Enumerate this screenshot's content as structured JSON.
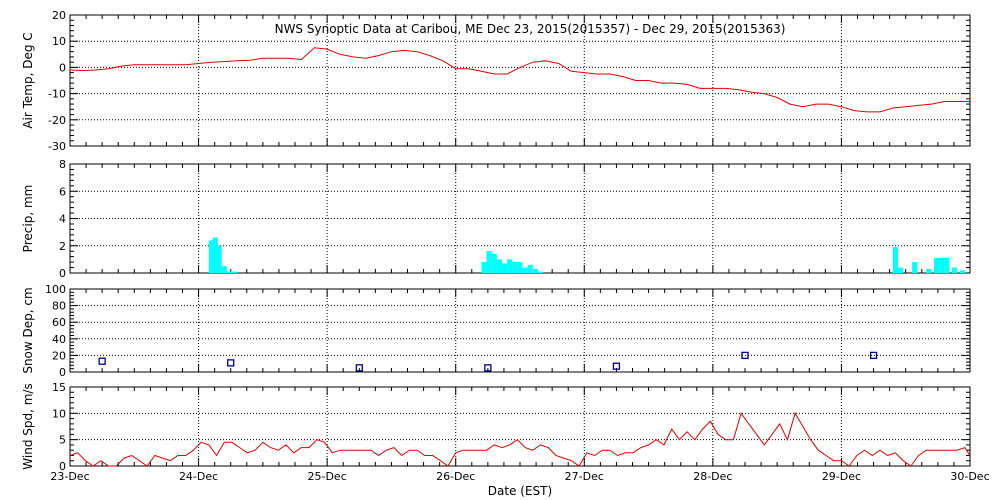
{
  "title": "NWS Synoptic Data at Caribou, ME    Dec 23, 2015(2015357) - Dec 29, 2015(2015363)",
  "xlabel": "Date (EST)",
  "colors": {
    "temp": "#e00000",
    "precip": "#00ffff",
    "snow": "#000080",
    "wind": "#e00000"
  },
  "chart_data": [
    {
      "type": "line",
      "ylabel": "Air Temp, Deg C",
      "xlim": [
        "Dec 23 00:00",
        "Dec 30 00:00"
      ],
      "ylim": [
        -30,
        20
      ],
      "yticks": [
        "20",
        "10",
        "0",
        "-10",
        "-20",
        "-30"
      ],
      "x_days": [
        0,
        0.1,
        0.2,
        0.3,
        0.4,
        0.5,
        0.6,
        0.7,
        0.8,
        0.9,
        1.0,
        1.1,
        1.2,
        1.3,
        1.4,
        1.5,
        1.6,
        1.7,
        1.8,
        1.9,
        2.0,
        2.1,
        2.2,
        2.3,
        2.4,
        2.5,
        2.6,
        2.7,
        2.8,
        2.9,
        3.0,
        3.1,
        3.2,
        3.3,
        3.4,
        3.5,
        3.6,
        3.7,
        3.8,
        3.9,
        4.0,
        4.1,
        4.2,
        4.3,
        4.4,
        4.5,
        4.6,
        4.7,
        4.8,
        4.9,
        5.0,
        5.1,
        5.2,
        5.3,
        5.4,
        5.5,
        5.6,
        5.7,
        5.8,
        5.9,
        6.0,
        6.1,
        6.2,
        6.3,
        6.4,
        6.5,
        6.6,
        6.7,
        6.8,
        6.9,
        7.0
      ],
      "series": [
        {
          "values": [
            -1,
            -1.2,
            -1,
            -0.5,
            0.5,
            1,
            1,
            1,
            1,
            1,
            1.5,
            2,
            2.2,
            2.5,
            2.7,
            3.5,
            3.5,
            3.5,
            3,
            7.5,
            7,
            5,
            4,
            3.5,
            4.5,
            6,
            6.5,
            6,
            4.5,
            2.5,
            -0.5,
            -0.5,
            -1.5,
            -2.5,
            -2.5,
            0,
            2,
            2.5,
            1.5,
            -1.5,
            -2,
            -2.5,
            -2.5,
            -3.5,
            -5,
            -5,
            -6,
            -6,
            -6.5,
            -8,
            -8,
            -8,
            -8.5,
            -9.5,
            -10,
            -11.5,
            -14,
            -15,
            -14,
            -14,
            -15,
            -16.5,
            -17,
            -17,
            -15.5,
            -15,
            -14.5,
            -14,
            -13,
            -13,
            -13
          ]
        }
      ]
    },
    {
      "type": "bar",
      "ylabel": "Precip, mm",
      "xlim": [
        "Dec 23 00:00",
        "Dec 30 00:00"
      ],
      "ylim": [
        0,
        8
      ],
      "yticks": [
        "8",
        "6",
        "4",
        "2",
        "0"
      ],
      "bins": [
        {
          "x": 1.08,
          "v": 2.4
        },
        {
          "x": 1.11,
          "v": 2.6
        },
        {
          "x": 1.14,
          "v": 2.0
        },
        {
          "x": 1.18,
          "v": 0.5
        },
        {
          "x": 1.22,
          "v": 0.1
        },
        {
          "x": 1.26,
          "v": 0.1
        },
        {
          "x": 3.2,
          "v": 0.8
        },
        {
          "x": 3.24,
          "v": 1.6
        },
        {
          "x": 3.28,
          "v": 1.4
        },
        {
          "x": 3.32,
          "v": 1.0
        },
        {
          "x": 3.36,
          "v": 0.7
        },
        {
          "x": 3.4,
          "v": 1.0
        },
        {
          "x": 3.44,
          "v": 0.8
        },
        {
          "x": 3.48,
          "v": 0.8
        },
        {
          "x": 3.52,
          "v": 0.4
        },
        {
          "x": 3.56,
          "v": 0.6
        },
        {
          "x": 3.6,
          "v": 0.3
        },
        {
          "x": 3.64,
          "v": 0.1
        },
        {
          "x": 6.4,
          "v": 1.9
        },
        {
          "x": 6.44,
          "v": 0.4
        },
        {
          "x": 6.55,
          "v": 0.8
        },
        {
          "x": 6.66,
          "v": 0.3
        },
        {
          "x": 6.72,
          "v": 1.1
        },
        {
          "x": 6.76,
          "v": 1.1
        },
        {
          "x": 6.8,
          "v": 1.1
        },
        {
          "x": 6.86,
          "v": 0.4
        },
        {
          "x": 6.92,
          "v": 0.2
        }
      ]
    },
    {
      "type": "scatter",
      "ylabel": "Snow Dep, cm",
      "xlim": [
        "Dec 23 00:00",
        "Dec 30 00:00"
      ],
      "ylim": [
        0,
        100
      ],
      "yticks": [
        "100",
        "80",
        "60",
        "40",
        "20",
        "0"
      ],
      "points": [
        {
          "x": 0.25,
          "y": 13
        },
        {
          "x": 1.25,
          "y": 11
        },
        {
          "x": 2.25,
          "y": 5
        },
        {
          "x": 3.25,
          "y": 5
        },
        {
          "x": 4.25,
          "y": 7
        },
        {
          "x": 5.25,
          "y": 20
        },
        {
          "x": 6.25,
          "y": 20
        }
      ]
    },
    {
      "type": "line",
      "ylabel": "Wind Spd, m/s",
      "xlim": [
        "Dec 23 00:00",
        "Dec 30 00:00"
      ],
      "ylim": [
        0,
        15
      ],
      "yticks": [
        "15",
        "10",
        "5",
        "0"
      ],
      "xticks": [
        "23-Dec",
        "24-Dec",
        "25-Dec",
        "26-Dec",
        "27-Dec",
        "28-Dec",
        "29-Dec",
        "30-Dec"
      ],
      "x_days": [
        0,
        0.06,
        0.12,
        0.18,
        0.24,
        0.3,
        0.36,
        0.42,
        0.48,
        0.54,
        0.6,
        0.66,
        0.72,
        0.78,
        0.84,
        0.9,
        0.96,
        1.02,
        1.08,
        1.14,
        1.2,
        1.26,
        1.32,
        1.38,
        1.44,
        1.5,
        1.56,
        1.62,
        1.68,
        1.74,
        1.8,
        1.86,
        1.92,
        1.98,
        2.04,
        2.1,
        2.16,
        2.22,
        2.28,
        2.34,
        2.4,
        2.46,
        2.52,
        2.58,
        2.64,
        2.7,
        2.76,
        2.82,
        2.88,
        2.94,
        3.0,
        3.06,
        3.12,
        3.18,
        3.24,
        3.3,
        3.36,
        3.42,
        3.48,
        3.54,
        3.6,
        3.66,
        3.72,
        3.78,
        3.84,
        3.9,
        3.96,
        4.02,
        4.08,
        4.14,
        4.2,
        4.26,
        4.32,
        4.38,
        4.44,
        4.5,
        4.56,
        4.62,
        4.68,
        4.74,
        4.8,
        4.86,
        4.92,
        4.98,
        5.04,
        5.1,
        5.16,
        5.22,
        5.28,
        5.34,
        5.4,
        5.46,
        5.52,
        5.58,
        5.64,
        5.7,
        5.76,
        5.82,
        5.88,
        5.94,
        6.0,
        6.06,
        6.12,
        6.18,
        6.24,
        6.3,
        6.36,
        6.42,
        6.48,
        6.54,
        6.6,
        6.66,
        6.72,
        6.78,
        6.84,
        6.9,
        6.96,
        7.0
      ],
      "series": [
        {
          "values": [
            2,
            2.5,
            1,
            0,
            1,
            0,
            0,
            1.5,
            2,
            1,
            0,
            2,
            1.5,
            1,
            2,
            2,
            3,
            4.5,
            4,
            2,
            4.5,
            4.5,
            3.5,
            2.5,
            3,
            4.5,
            3.5,
            3,
            4,
            2.5,
            3.5,
            3.5,
            5,
            4.5,
            2.5,
            3,
            3,
            3,
            3,
            3,
            2,
            3,
            3.5,
            2,
            3,
            3,
            2,
            2,
            1,
            0,
            2.5,
            3,
            3,
            3,
            3,
            4,
            3.5,
            4,
            5,
            3.5,
            3,
            4,
            3.5,
            2,
            1.5,
            1,
            0,
            2.5,
            2,
            3,
            3,
            2,
            2.5,
            2.5,
            3.5,
            4,
            5,
            4,
            7,
            5,
            6.5,
            5,
            7,
            8.5,
            6,
            5,
            5,
            10,
            8,
            6,
            4,
            6,
            8,
            5,
            10,
            7.5,
            5,
            3,
            2,
            1,
            1,
            0,
            2,
            3,
            2,
            3,
            2,
            2.5,
            1,
            0,
            2,
            3,
            3,
            3,
            3,
            3,
            3.5,
            2
          ]
        }
      ]
    }
  ]
}
